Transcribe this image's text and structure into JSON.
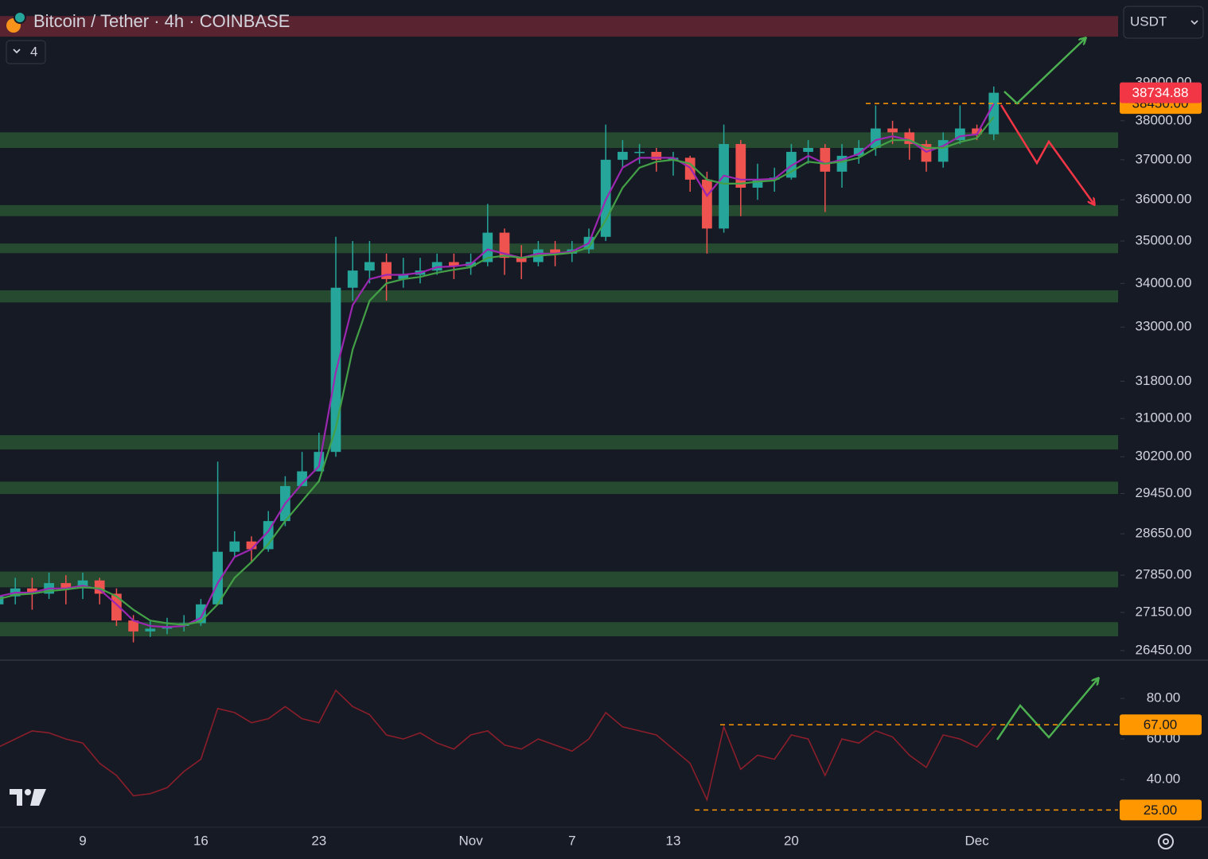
{
  "chart_data": [
    {
      "type": "candlestick",
      "title": "Bitcoin / Tether · 4h · COINBASE",
      "indicator_count": "4",
      "currency": "USDT",
      "categories": [
        null,
        null,
        null,
        null,
        null,
        "9",
        null,
        null,
        null,
        null,
        null,
        null,
        "16",
        null,
        null,
        null,
        null,
        null,
        null,
        "23",
        null,
        null,
        null,
        null,
        null,
        null,
        null,
        null,
        "Nov",
        null,
        null,
        null,
        null,
        null,
        "7",
        null,
        null,
        null,
        null,
        null,
        "13",
        null,
        null,
        null,
        null,
        null,
        null,
        "20",
        null,
        null,
        null,
        null,
        null,
        null,
        null,
        null,
        null,
        null,
        "Dec",
        null
      ],
      "open": [
        27300,
        27450,
        27600,
        27500,
        27700,
        27600,
        27750,
        27500,
        27000,
        26800,
        26850,
        26900,
        26950,
        27300,
        28300,
        28500,
        28350,
        28900,
        29600,
        29900,
        30300,
        33900,
        34300,
        34500,
        34100,
        34200,
        34300,
        34500,
        34400,
        34500,
        35200,
        34600,
        34500,
        34800,
        34700,
        34800,
        35100,
        37000,
        37200,
        37200,
        37000,
        37050,
        36500,
        35300,
        37400,
        36300,
        36500,
        36550,
        37200,
        37300,
        36700,
        37100,
        37300,
        37800,
        37700,
        37400,
        36950,
        37500,
        37800,
        37650
      ],
      "high": [
        27700,
        27800,
        27800,
        27900,
        27850,
        27900,
        27800,
        27600,
        27100,
        27000,
        27050,
        27100,
        27400,
        30100,
        28700,
        28600,
        29100,
        29800,
        30300,
        30700,
        35100,
        35000,
        35000,
        34700,
        34600,
        34600,
        34700,
        34700,
        34700,
        35900,
        35300,
        34900,
        35000,
        35000,
        35000,
        35300,
        37900,
        37500,
        37400,
        37300,
        37200,
        37100,
        36700,
        37900,
        37500,
        36900,
        36800,
        37400,
        37500,
        37400,
        37400,
        37500,
        38400,
        38000,
        37800,
        37500,
        37700,
        38400,
        37900,
        38900
      ],
      "low": [
        27150,
        27300,
        27200,
        27400,
        27300,
        27400,
        27300,
        26900,
        26600,
        26700,
        26750,
        26800,
        26900,
        27300,
        28200,
        28100,
        28300,
        28800,
        29600,
        29900,
        30200,
        33600,
        34000,
        33600,
        33900,
        34000,
        34200,
        34100,
        34200,
        34400,
        34200,
        34100,
        34400,
        34400,
        34500,
        34700,
        35000,
        36800,
        36900,
        36700,
        36600,
        36200,
        34700,
        35200,
        35600,
        36000,
        36200,
        36500,
        36900,
        35700,
        36300,
        36900,
        37100,
        37400,
        37000,
        36700,
        36800,
        37400,
        37500,
        37500
      ],
      "close": [
        27450,
        27600,
        27500,
        27700,
        27600,
        27750,
        27500,
        27000,
        26800,
        26850,
        26900,
        26950,
        27300,
        28300,
        28500,
        28350,
        28900,
        29600,
        29900,
        30300,
        33900,
        34300,
        34500,
        34100,
        34200,
        34300,
        34500,
        34400,
        34500,
        35200,
        34600,
        34500,
        34800,
        34700,
        34800,
        35100,
        37000,
        37200,
        37200,
        37000,
        37050,
        36500,
        35300,
        37400,
        36300,
        36500,
        36550,
        37200,
        37300,
        36700,
        37100,
        37300,
        37800,
        37700,
        37400,
        36950,
        37500,
        37800,
        37650,
        38734.88
      ],
      "up_color": "#26a69a",
      "down_color": "#ef5350",
      "series": [
        {
          "color": "#9c27b0",
          "values": [
            27450,
            27520,
            27520,
            27600,
            27600,
            27650,
            27580,
            27300,
            27000,
            26900,
            26880,
            26900,
            27050,
            27700,
            28200,
            28350,
            28700,
            29250,
            29650,
            30000,
            32000,
            33500,
            34100,
            34200,
            34200,
            34250,
            34380,
            34400,
            34450,
            34800,
            34700,
            34600,
            34700,
            34700,
            34750,
            34950,
            36000,
            36800,
            37050,
            37050,
            37050,
            36800,
            36100,
            36600,
            36500,
            36500,
            36520,
            36850,
            37100,
            36900,
            37000,
            37150,
            37500,
            37600,
            37500,
            37200,
            37350,
            37600,
            37650,
            38450
          ]
        },
        {
          "color": "#43a047",
          "values": [
            27400,
            27480,
            27500,
            27550,
            27580,
            27620,
            27600,
            27450,
            27200,
            27000,
            26950,
            26920,
            26980,
            27300,
            27800,
            28100,
            28450,
            28900,
            29300,
            29700,
            30800,
            32500,
            33600,
            34000,
            34100,
            34150,
            34250,
            34320,
            34380,
            34600,
            34650,
            34600,
            34650,
            34680,
            34720,
            34850,
            35500,
            36300,
            36800,
            36950,
            37000,
            36900,
            36500,
            36400,
            36400,
            36450,
            36480,
            36700,
            36950,
            36900,
            36950,
            37050,
            37300,
            37500,
            37500,
            37300,
            37300,
            37450,
            37550,
            38100
          ]
        }
      ],
      "log_scale": true,
      "ylim": [
        26278,
        41271
      ],
      "yticks": [
        {
          "value": 39000,
          "label": "39000.00"
        },
        {
          "value": 38000,
          "label": "38000.00"
        },
        {
          "value": 37000,
          "label": "37000.00"
        },
        {
          "value": 36000,
          "label": "36000.00"
        },
        {
          "value": 35000,
          "label": "35000.00"
        },
        {
          "value": 34000,
          "label": "34000.00"
        },
        {
          "value": 33000,
          "label": "33000.00"
        },
        {
          "value": 31800,
          "label": "31800.00"
        },
        {
          "value": 31000,
          "label": "31000.00"
        },
        {
          "value": 30200,
          "label": "30200.00"
        },
        {
          "value": 29450,
          "label": "29450.00"
        },
        {
          "value": 28650,
          "label": "28650.00"
        },
        {
          "value": 27850,
          "label": "27850.00"
        },
        {
          "value": 27150,
          "label": "27150.00"
        },
        {
          "value": 26450,
          "label": "26450.00"
        }
      ],
      "last_price": 38734.88,
      "last_price_color": "#f23645",
      "levels": [
        {
          "value": 38450,
          "label": "38450.00"
        }
      ],
      "level_color": "#ff9800",
      "support_zones": [
        [
          37300,
          37700
        ],
        [
          35600,
          35870
        ],
        [
          34710,
          34940
        ],
        [
          33560,
          33840
        ],
        [
          30350,
          30650
        ],
        [
          29440,
          29690
        ],
        [
          27620,
          27920
        ],
        [
          26710,
          26970
        ]
      ],
      "zone_color": "#254a30",
      "resistance_zone": [
        40250,
        40820
      ],
      "resistance_color": "#5a2330"
    },
    {
      "type": "line",
      "series": [
        {
          "color": "#8b1e2a",
          "values": [
            56,
            60,
            64,
            63,
            60,
            58,
            48,
            42,
            32,
            33,
            36,
            44,
            50,
            75,
            73,
            68,
            70,
            76,
            70,
            68,
            84,
            76,
            72,
            62,
            60,
            63,
            58,
            55,
            62,
            64,
            57,
            55,
            60,
            57,
            54,
            60,
            73,
            66,
            64,
            62,
            55,
            48,
            30,
            66,
            45,
            52,
            50,
            62,
            60,
            42,
            60,
            58,
            64,
            61,
            52,
            46,
            62,
            60,
            56,
            66
          ]
        }
      ],
      "ylim": [
        16.5,
        96.9
      ],
      "yticks": [
        {
          "value": 80,
          "label": "80.00"
        },
        {
          "value": 60,
          "label": "60.00"
        },
        {
          "value": 40,
          "label": "40.00"
        }
      ],
      "levels": [
        {
          "value": 67,
          "label": "67.00"
        },
        {
          "value": 25,
          "label": "25.00"
        }
      ],
      "level_color": "#ff9800"
    }
  ]
}
